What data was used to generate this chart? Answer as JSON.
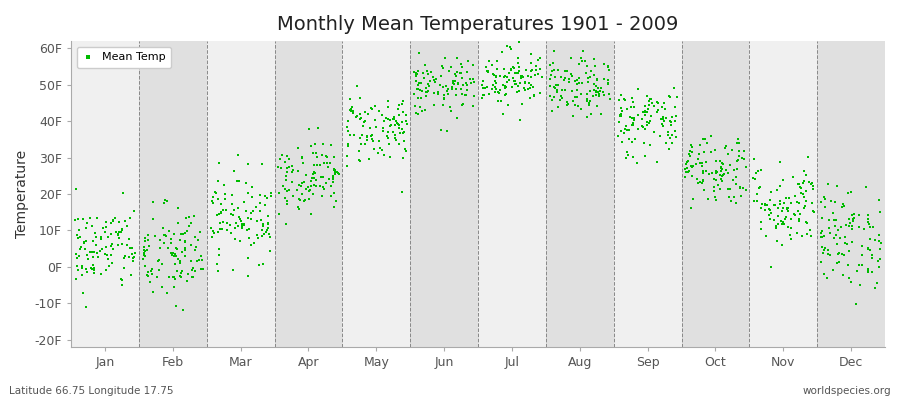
{
  "title": "Monthly Mean Temperatures 1901 - 2009",
  "ylabel": "Temperature",
  "xlabel_labels": [
    "Jan",
    "Feb",
    "Mar",
    "Apr",
    "May",
    "Jun",
    "Jul",
    "Aug",
    "Sep",
    "Oct",
    "Nov",
    "Dec"
  ],
  "ytick_labels": [
    "-20F",
    "-10F",
    "0F",
    "10F",
    "20F",
    "30F",
    "40F",
    "50F",
    "60F"
  ],
  "ytick_values": [
    -20,
    -10,
    0,
    10,
    20,
    30,
    40,
    50,
    60
  ],
  "ylim": [
    -22,
    62
  ],
  "dot_color": "#00bb00",
  "background_color": "#ffffff",
  "band_color_light": "#f0f0f0",
  "band_color_dark": "#e0e0e0",
  "footer_left": "Latitude 66.75 Longitude 17.75",
  "footer_right": "worldspecies.org",
  "legend_label": "Mean Temp",
  "monthly_means": [
    5,
    3,
    14,
    25,
    38,
    49,
    52,
    49,
    40,
    27,
    17,
    8
  ],
  "monthly_spreads": [
    6,
    7,
    6,
    5,
    5,
    4,
    4,
    4,
    5,
    5,
    6,
    7
  ],
  "n_years": 109,
  "seed": 42
}
